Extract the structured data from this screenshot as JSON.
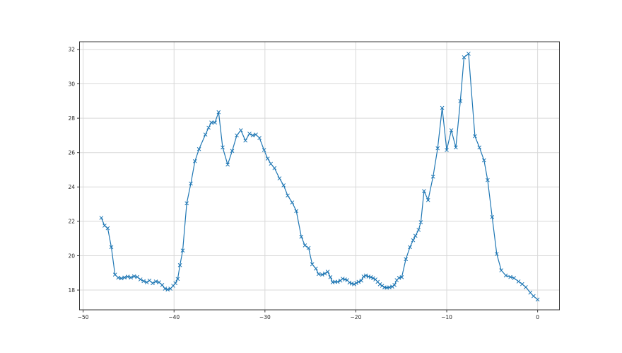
{
  "figure": {
    "kind": "matplotlib-line-plot",
    "background": "#ffffff"
  },
  "chart_data": {
    "type": "line",
    "title": "",
    "xlabel": "",
    "ylabel": "",
    "grid": true,
    "legend": false,
    "xlim": [
      -50.4,
      2.4
    ],
    "ylim": [
      16.85,
      32.45
    ],
    "xticks": [
      {
        "value": -50,
        "label": "−50"
      },
      {
        "value": -40,
        "label": "−40"
      },
      {
        "value": -30,
        "label": "−30"
      },
      {
        "value": -20,
        "label": "−20"
      },
      {
        "value": -10,
        "label": "−10"
      },
      {
        "value": 0,
        "label": "0"
      }
    ],
    "yticks": [
      {
        "value": 18,
        "label": "18"
      },
      {
        "value": 20,
        "label": "20"
      },
      {
        "value": 22,
        "label": "22"
      },
      {
        "value": 24,
        "label": "24"
      },
      {
        "value": 26,
        "label": "26"
      },
      {
        "value": 28,
        "label": "28"
      },
      {
        "value": 30,
        "label": "30"
      },
      {
        "value": 32,
        "label": "32"
      }
    ],
    "colors": {
      "line": "#1f77b4",
      "grid": "#d9d9d9",
      "spine": "#3a3a3a",
      "tick": "#3a3a3a",
      "background": "#ffffff"
    },
    "series": [
      {
        "marker": "x",
        "line_width": 1.2,
        "marker_half_size": 2.2,
        "points": [
          [
            -48.0,
            22.2
          ],
          [
            -47.65,
            21.75
          ],
          [
            -47.3,
            21.6
          ],
          [
            -46.9,
            20.5
          ],
          [
            -46.5,
            18.9
          ],
          [
            -46.15,
            18.72
          ],
          [
            -45.8,
            18.68
          ],
          [
            -45.45,
            18.73
          ],
          [
            -45.1,
            18.78
          ],
          [
            -44.75,
            18.73
          ],
          [
            -44.4,
            18.8
          ],
          [
            -44.05,
            18.76
          ],
          [
            -43.7,
            18.62
          ],
          [
            -43.35,
            18.52
          ],
          [
            -43.0,
            18.45
          ],
          [
            -42.7,
            18.56
          ],
          [
            -42.35,
            18.4
          ],
          [
            -42.0,
            18.5
          ],
          [
            -41.65,
            18.45
          ],
          [
            -41.3,
            18.3
          ],
          [
            -41.0,
            18.08
          ],
          [
            -40.7,
            18.03
          ],
          [
            -40.4,
            18.08
          ],
          [
            -40.1,
            18.25
          ],
          [
            -39.85,
            18.4
          ],
          [
            -39.6,
            18.65
          ],
          [
            -39.35,
            19.45
          ],
          [
            -39.05,
            20.3
          ],
          [
            -38.6,
            23.05
          ],
          [
            -38.15,
            24.2
          ],
          [
            -37.7,
            25.5
          ],
          [
            -37.25,
            26.2
          ],
          [
            -36.55,
            27.05
          ],
          [
            -36.2,
            27.45
          ],
          [
            -35.9,
            27.75
          ],
          [
            -35.5,
            27.75
          ],
          [
            -35.1,
            28.35
          ],
          [
            -34.65,
            26.3
          ],
          [
            -34.1,
            25.3
          ],
          [
            -33.6,
            26.1
          ],
          [
            -33.1,
            27.0
          ],
          [
            -32.65,
            27.3
          ],
          [
            -32.15,
            26.7
          ],
          [
            -31.7,
            27.1
          ],
          [
            -31.35,
            27.0
          ],
          [
            -31.0,
            27.05
          ],
          [
            -30.6,
            26.85
          ],
          [
            -30.1,
            26.15
          ],
          [
            -29.7,
            25.65
          ],
          [
            -29.35,
            25.35
          ],
          [
            -28.95,
            25.1
          ],
          [
            -28.4,
            24.5
          ],
          [
            -27.95,
            24.1
          ],
          [
            -27.5,
            23.5
          ],
          [
            -27.0,
            23.1
          ],
          [
            -26.55,
            22.6
          ],
          [
            -26.0,
            21.1
          ],
          [
            -25.6,
            20.6
          ],
          [
            -25.2,
            20.45
          ],
          [
            -24.8,
            19.5
          ],
          [
            -24.4,
            19.25
          ],
          [
            -24.1,
            18.93
          ],
          [
            -23.7,
            18.9
          ],
          [
            -23.4,
            18.96
          ],
          [
            -23.1,
            19.07
          ],
          [
            -22.8,
            18.75
          ],
          [
            -22.55,
            18.45
          ],
          [
            -22.3,
            18.48
          ],
          [
            -22.0,
            18.48
          ],
          [
            -21.7,
            18.55
          ],
          [
            -21.45,
            18.66
          ],
          [
            -21.2,
            18.62
          ],
          [
            -20.95,
            18.58
          ],
          [
            -20.7,
            18.44
          ],
          [
            -20.45,
            18.38
          ],
          [
            -20.2,
            18.34
          ],
          [
            -19.95,
            18.41
          ],
          [
            -19.7,
            18.48
          ],
          [
            -19.4,
            18.55
          ],
          [
            -19.15,
            18.79
          ],
          [
            -18.9,
            18.85
          ],
          [
            -18.6,
            18.79
          ],
          [
            -18.35,
            18.75
          ],
          [
            -18.1,
            18.69
          ],
          [
            -17.85,
            18.62
          ],
          [
            -17.6,
            18.48
          ],
          [
            -17.35,
            18.34
          ],
          [
            -17.1,
            18.25
          ],
          [
            -16.85,
            18.16
          ],
          [
            -16.6,
            18.14
          ],
          [
            -16.3,
            18.16
          ],
          [
            -16.0,
            18.2
          ],
          [
            -15.75,
            18.3
          ],
          [
            -15.5,
            18.58
          ],
          [
            -15.25,
            18.71
          ],
          [
            -14.95,
            18.75
          ],
          [
            -14.5,
            19.8
          ],
          [
            -14.05,
            20.5
          ],
          [
            -13.7,
            20.9
          ],
          [
            -13.45,
            21.16
          ],
          [
            -13.1,
            21.5
          ],
          [
            -12.85,
            21.95
          ],
          [
            -12.5,
            23.76
          ],
          [
            -12.05,
            23.24
          ],
          [
            -11.5,
            24.6
          ],
          [
            -11.0,
            26.25
          ],
          [
            -10.5,
            28.6
          ],
          [
            -10.0,
            26.15
          ],
          [
            -9.5,
            27.3
          ],
          [
            -9.0,
            26.3
          ],
          [
            -8.5,
            29.0
          ],
          [
            -8.1,
            31.55
          ],
          [
            -7.6,
            31.75
          ],
          [
            -6.9,
            26.95
          ],
          [
            -6.4,
            26.3
          ],
          [
            -5.9,
            25.55
          ],
          [
            -5.5,
            24.4
          ],
          [
            -5.0,
            22.25
          ],
          [
            -4.5,
            20.1
          ],
          [
            -4.0,
            19.15
          ],
          [
            -3.5,
            18.85
          ],
          [
            -3.0,
            18.76
          ],
          [
            -2.6,
            18.7
          ],
          [
            -2.1,
            18.5
          ],
          [
            -1.7,
            18.35
          ],
          [
            -1.3,
            18.17
          ],
          [
            -0.8,
            17.85
          ],
          [
            -0.45,
            17.65
          ],
          [
            0.0,
            17.45
          ]
        ]
      }
    ]
  }
}
